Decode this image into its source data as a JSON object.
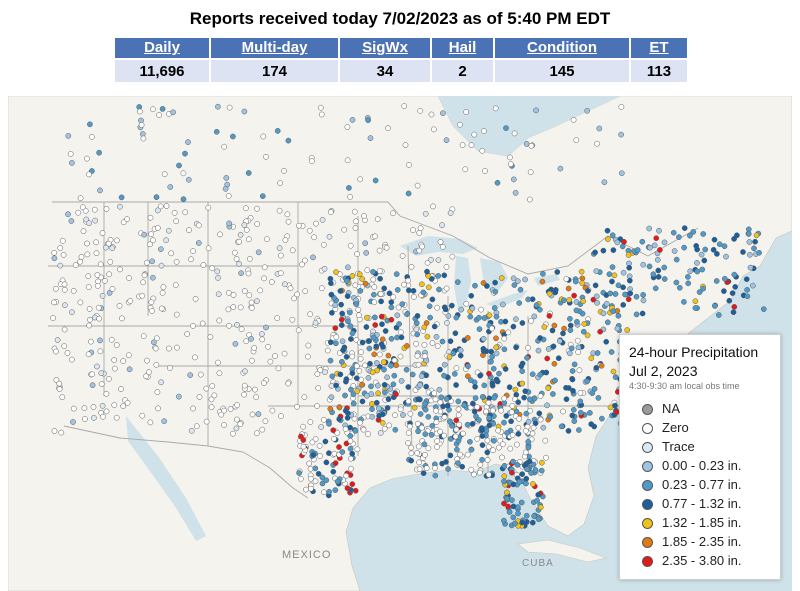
{
  "header": {
    "title": "Reports received today 7/02/2023 as of 5:40 PM EDT"
  },
  "stats": [
    {
      "label": "Daily",
      "value": "11,696"
    },
    {
      "label": "Multi-day",
      "value": "174"
    },
    {
      "label": "SigWx",
      "value": "34"
    },
    {
      "label": "Hail",
      "value": "2"
    },
    {
      "label": "Condition",
      "value": "145"
    },
    {
      "label": "ET",
      "value": "113"
    }
  ],
  "map": {
    "place_labels": {
      "mexico": "MEXICO",
      "cuba": "CUBA"
    },
    "colors": {
      "land": "#f5f3ee",
      "water": "#cfe2ea",
      "border": "#a9a9a9"
    }
  },
  "legend": {
    "title_line1": "24-hour Precipitation",
    "title_line2": "Jul 2, 2023",
    "subtitle": "4:30-9:30 am local obs time",
    "items": [
      {
        "label": "NA",
        "color": "#9a9a9a"
      },
      {
        "label": "Zero",
        "color": "#ffffff"
      },
      {
        "label": "Trace",
        "color": "#dbe8f3"
      },
      {
        "label": "0.00 - 0.23 in.",
        "color": "#9fc3e2"
      },
      {
        "label": "0.23 - 0.77 in.",
        "color": "#4f9ac8"
      },
      {
        "label": "0.77 - 1.32 in.",
        "color": "#1c5f9d"
      },
      {
        "label": "1.32 - 1.85 in.",
        "color": "#f0c21a"
      },
      {
        "label": "1.85 - 2.35 in.",
        "color": "#e07a17"
      },
      {
        "label": "2.35 - 3.80 in.",
        "color": "#e31a1c"
      }
    ]
  }
}
